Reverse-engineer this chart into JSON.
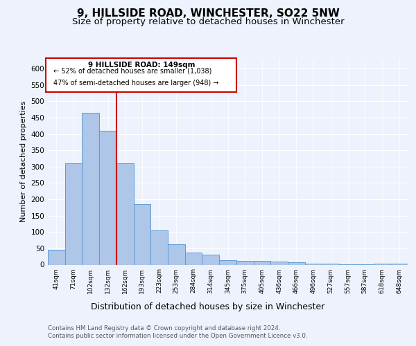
{
  "title": "9, HILLSIDE ROAD, WINCHESTER, SO22 5NW",
  "subtitle": "Size of property relative to detached houses in Winchester",
  "xlabel": "Distribution of detached houses by size in Winchester",
  "ylabel": "Number of detached properties",
  "footnote1": "Contains HM Land Registry data © Crown copyright and database right 2024.",
  "footnote2": "Contains public sector information licensed under the Open Government Licence v3.0.",
  "annotation_line1": "9 HILLSIDE ROAD: 149sqm",
  "annotation_line2": "← 52% of detached houses are smaller (1,038)",
  "annotation_line3": "47% of semi-detached houses are larger (948) →",
  "bar_labels": [
    "41sqm",
    "71sqm",
    "102sqm",
    "132sqm",
    "162sqm",
    "193sqm",
    "223sqm",
    "253sqm",
    "284sqm",
    "314sqm",
    "345sqm",
    "375sqm",
    "405sqm",
    "436sqm",
    "466sqm",
    "496sqm",
    "527sqm",
    "557sqm",
    "587sqm",
    "618sqm",
    "648sqm"
  ],
  "bar_values": [
    45,
    310,
    465,
    410,
    310,
    185,
    105,
    63,
    37,
    30,
    13,
    12,
    12,
    10,
    7,
    4,
    4,
    1,
    1,
    3,
    3
  ],
  "bar_color": "#aec6e8",
  "bar_edgecolor": "#5b9bd5",
  "vline_index": 3.5,
  "vline_color": "#cc0000",
  "bg_color": "#eef2fc",
  "plot_bg_color": "#eef2fc",
  "ylim": [
    0,
    630
  ],
  "yticks": [
    0,
    50,
    100,
    150,
    200,
    250,
    300,
    350,
    400,
    450,
    500,
    550,
    600
  ],
  "title_fontsize": 11,
  "subtitle_fontsize": 9.5,
  "xlabel_fontsize": 9,
  "ylabel_fontsize": 8,
  "annot_fontsize1": 7.5,
  "annot_fontsize2": 7.0
}
